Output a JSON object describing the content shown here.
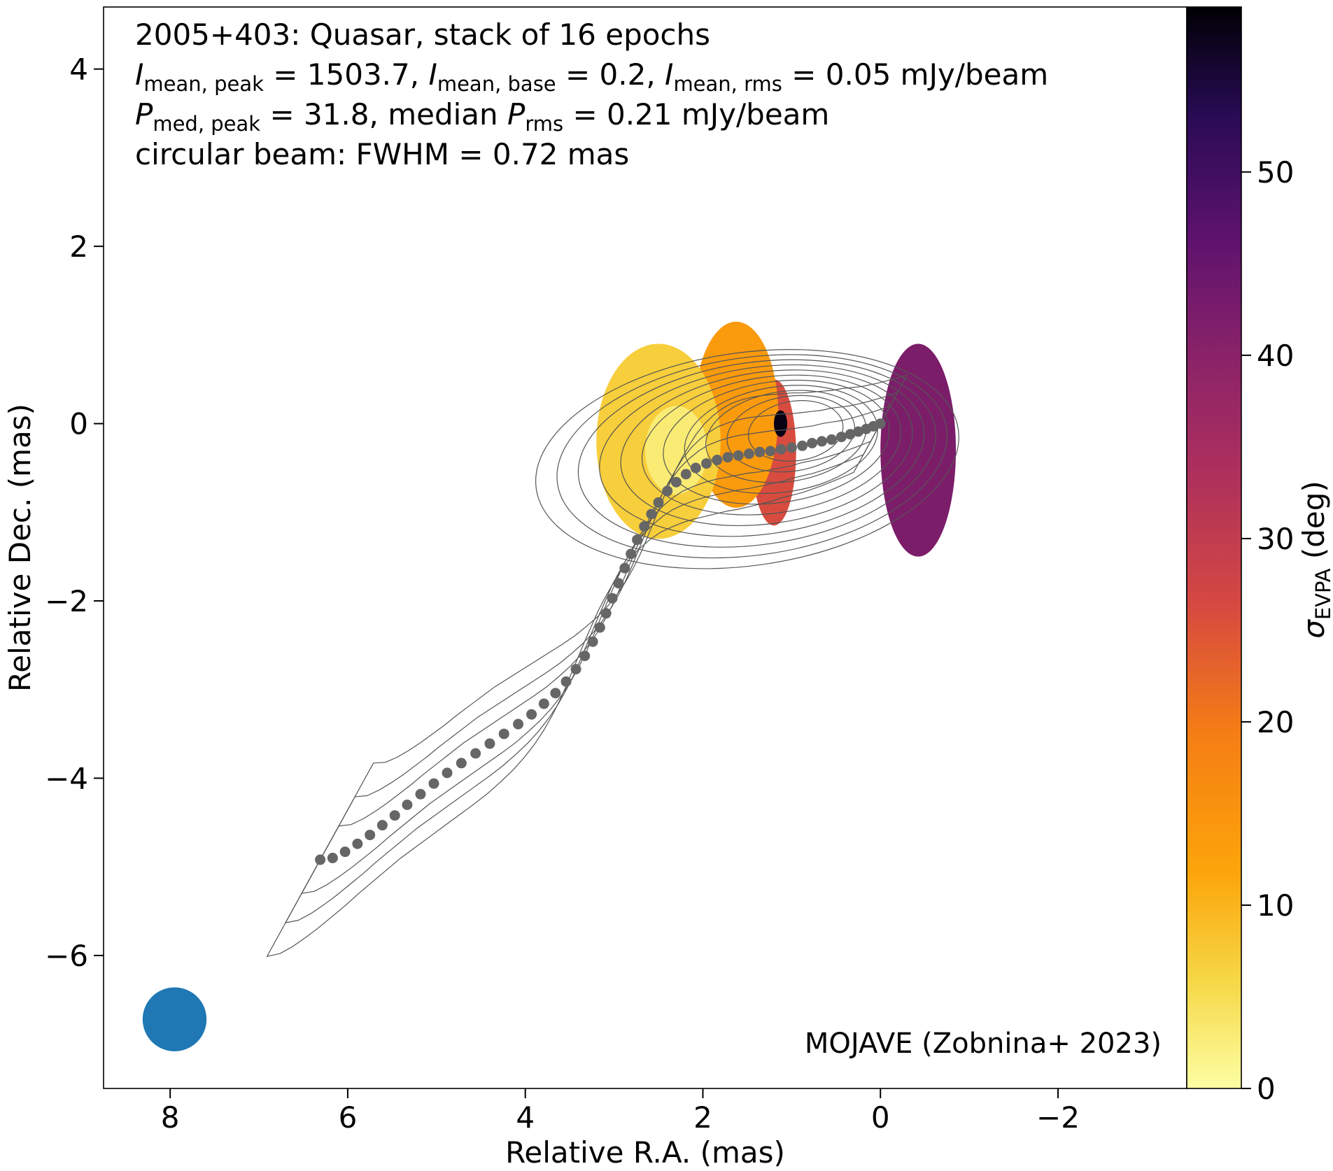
{
  "chart_data": {
    "type": "heatmap",
    "title_lines": [
      [
        {
          "t": "2005+403: Quasar, stack of 16 epochs"
        }
      ],
      [
        {
          "t": "I",
          "it": true
        },
        {
          "t": "mean, peak",
          "sub": true
        },
        {
          "t": " = 1503.7, "
        },
        {
          "t": "I",
          "it": true
        },
        {
          "t": "mean, base",
          "sub": true
        },
        {
          "t": " = 0.2, "
        },
        {
          "t": "I",
          "it": true
        },
        {
          "t": "mean, rms",
          "sub": true
        },
        {
          "t": " = 0.05 mJy/beam"
        }
      ],
      [
        {
          "t": "P",
          "it": true
        },
        {
          "t": "med, peak",
          "sub": true
        },
        {
          "t": " = 31.8, median "
        },
        {
          "t": "P",
          "it": true
        },
        {
          "t": "rms",
          "sub": true
        },
        {
          "t": " = 0.21 mJy/beam"
        }
      ],
      [
        {
          "t": "circular beam: FWHM = 0.72 mas"
        }
      ]
    ],
    "xlabel": "Relative R.A. (mas)",
    "ylabel": "Relative Dec. (mas)",
    "colorbar_label": [
      {
        "t": "σ",
        "it": true
      },
      {
        "t": "EVPA",
        "sub": true
      },
      {
        "t": " (deg)"
      }
    ],
    "xlim": [
      8.75,
      -3.45
    ],
    "ylim": [
      -7.5,
      4.7
    ],
    "x_ticks": [
      8,
      6,
      4,
      2,
      0,
      -2
    ],
    "x_tick_labels": [
      "8",
      "6",
      "4",
      "2",
      "0",
      "−2"
    ],
    "y_ticks": [
      4,
      2,
      0,
      -2,
      -4,
      -6
    ],
    "y_tick_labels": [
      "4",
      "2",
      "0",
      "−2",
      "−4",
      "−6"
    ],
    "colorbar": {
      "colormap": "inferno_r",
      "range": [
        0,
        59
      ],
      "ticks": [
        0,
        10,
        20,
        30,
        40,
        50
      ],
      "tick_labels": [
        "0",
        "10",
        "20",
        "30",
        "40",
        "50"
      ]
    },
    "credit": "MOJAVE (Zobnina+ 2023)",
    "beam": {
      "x": 7.95,
      "y": -6.72,
      "fwhm_mas": 0.72,
      "color": "#1f77b4"
    },
    "ridge_line": {
      "color": "#666666",
      "points": [
        [
          0.0,
          0.0
        ],
        [
          0.08,
          -0.03
        ],
        [
          0.16,
          -0.06
        ],
        [
          0.25,
          -0.09
        ],
        [
          0.34,
          -0.12
        ],
        [
          0.44,
          -0.15
        ],
        [
          0.55,
          -0.18
        ],
        [
          0.66,
          -0.2
        ],
        [
          0.77,
          -0.22
        ],
        [
          0.88,
          -0.25
        ],
        [
          1.0,
          -0.27
        ],
        [
          1.12,
          -0.29
        ],
        [
          1.24,
          -0.31
        ],
        [
          1.36,
          -0.32
        ],
        [
          1.48,
          -0.34
        ],
        [
          1.6,
          -0.36
        ],
        [
          1.72,
          -0.38
        ],
        [
          1.84,
          -0.41
        ],
        [
          1.96,
          -0.45
        ],
        [
          2.08,
          -0.5
        ],
        [
          2.19,
          -0.57
        ],
        [
          2.3,
          -0.66
        ],
        [
          2.4,
          -0.76
        ],
        [
          2.5,
          -0.89
        ],
        [
          2.58,
          -1.02
        ],
        [
          2.66,
          -1.16
        ],
        [
          2.74,
          -1.31
        ],
        [
          2.81,
          -1.47
        ],
        [
          2.88,
          -1.63
        ],
        [
          2.95,
          -1.8
        ],
        [
          3.02,
          -1.97
        ],
        [
          3.09,
          -2.14
        ],
        [
          3.16,
          -2.3
        ],
        [
          3.24,
          -2.46
        ],
        [
          3.33,
          -2.62
        ],
        [
          3.43,
          -2.77
        ],
        [
          3.54,
          -2.91
        ],
        [
          3.66,
          -3.04
        ],
        [
          3.79,
          -3.16
        ],
        [
          3.93,
          -3.28
        ],
        [
          4.08,
          -3.39
        ],
        [
          4.24,
          -3.5
        ],
        [
          4.4,
          -3.61
        ],
        [
          4.56,
          -3.72
        ],
        [
          4.72,
          -3.83
        ],
        [
          4.88,
          -3.94
        ],
        [
          5.03,
          -4.06
        ],
        [
          5.18,
          -4.18
        ],
        [
          5.33,
          -4.3
        ],
        [
          5.47,
          -4.42
        ],
        [
          5.61,
          -4.53
        ],
        [
          5.75,
          -4.64
        ],
        [
          5.89,
          -4.74
        ],
        [
          6.03,
          -4.83
        ],
        [
          6.17,
          -4.9
        ],
        [
          6.31,
          -4.92
        ]
      ]
    },
    "evpa_regions": [
      {
        "x": [
          0.0,
          -0.85
        ],
        "y": [
          -1.5,
          0.9
        ],
        "value": 42
      },
      {
        "x": [
          1.45,
          0.95
        ],
        "y": [
          -1.15,
          0.5
        ],
        "value": 26
      },
      {
        "x": [
          2.1,
          1.15
        ],
        "y": [
          -0.95,
          1.15
        ],
        "value": 14
      },
      {
        "x": [
          3.2,
          1.8
        ],
        "y": [
          -1.3,
          0.9
        ],
        "value": 7
      },
      {
        "x": [
          2.65,
          1.95
        ],
        "y": [
          -0.8,
          0.2
        ],
        "value": 3
      },
      {
        "x": [
          1.2,
          1.05
        ],
        "y": [
          -0.15,
          0.15
        ],
        "value": 58
      }
    ],
    "contours": {
      "color": "#555555",
      "levels_count": 11
    }
  }
}
